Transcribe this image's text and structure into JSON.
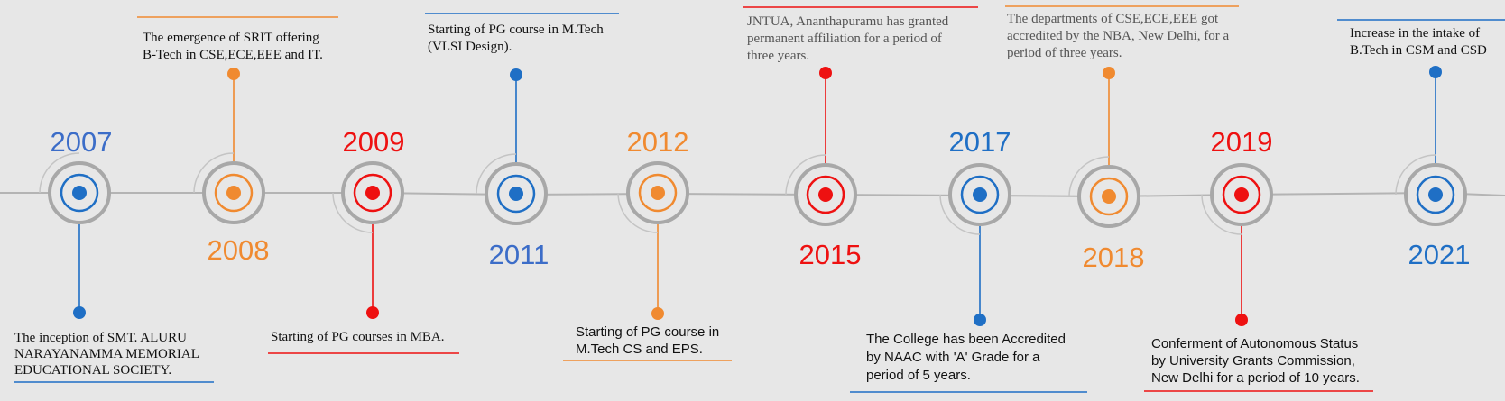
{
  "colors": {
    "blue": "#1f6fc5",
    "blue_year": "#3c6dc8",
    "orange": "#f08a30",
    "red": "#ee1111",
    "ring_gray": "#a8a8a8",
    "text": "#111111",
    "background": "#e7e7e7"
  },
  "events": [
    {
      "year": "2007",
      "color": "blue",
      "text": [
        "The inception of SMT. ALURU",
        "NARAYANAMMA MEMORIAL",
        "EDUCATIONAL SOCIETY."
      ]
    },
    {
      "year": "2008",
      "color": "orange",
      "text": [
        "The emergence of SRIT offering",
        "B-Tech in CSE,ECE,EEE and IT."
      ]
    },
    {
      "year": "2009",
      "color": "red",
      "text": [
        "Starting of PG courses in MBA."
      ]
    },
    {
      "year": "2011",
      "color": "blue",
      "text": [
        "Starting of PG course in M.Tech",
        "(VLSI Design)."
      ]
    },
    {
      "year": "2012",
      "color": "orange",
      "text": [
        "Starting of PG course in",
        "M.Tech CS and EPS."
      ]
    },
    {
      "year": "2015",
      "color": "red",
      "text": [
        "JNTUA,  Ananthapuramu has granted",
        "permanent affiliation for a period of",
        "three years."
      ]
    },
    {
      "year": "2017",
      "color": "blue",
      "text": [
        "The College has been Accredited",
        "by NAAC with 'A' Grade for a",
        "period of 5 years."
      ]
    },
    {
      "year": "2018",
      "color": "orange",
      "text": [
        "The departments of CSE,ECE,EEE got",
        "accredited by the NBA, New Delhi, for a",
        "period of three years."
      ]
    },
    {
      "year": "2019",
      "color": "red",
      "text": [
        "Conferment of Autonomous Status",
        "by University Grants Commission,",
        "New Delhi for a period of 10 years."
      ]
    },
    {
      "year": "2021",
      "color": "blue",
      "text": [
        "Increase in the intake of",
        "B.Tech in CSM and CSD"
      ]
    }
  ]
}
